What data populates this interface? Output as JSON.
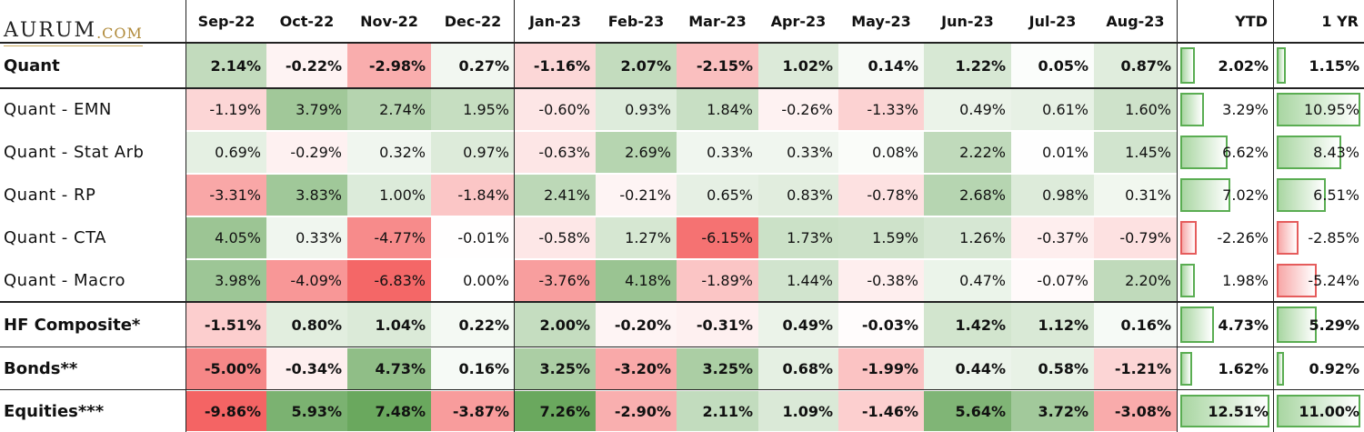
{
  "logo": {
    "text": "AURUM",
    "suffix": ".COM"
  },
  "colors": {
    "positive": "#6aa85e",
    "negative": "#f46464",
    "neutral": "#ffffff",
    "bar_pos_fill": "#a9d6a2",
    "bar_pos_edge": "#5aad52",
    "bar_neg_fill": "#f7a8a8",
    "bar_neg_edge": "#e55c5c"
  },
  "chart_data": {
    "type": "heatmap",
    "columns": [
      "Sep-22",
      "Oct-22",
      "Nov-22",
      "Dec-22",
      "Jan-23",
      "Feb-23",
      "Mar-23",
      "Apr-23",
      "May-23",
      "Jun-23",
      "Jul-23",
      "Aug-23"
    ],
    "summary_columns": [
      "YTD",
      "1 YR"
    ],
    "rows": [
      {
        "label": "Quant",
        "bold": true,
        "values": [
          2.14,
          -0.22,
          -2.98,
          0.27,
          -1.16,
          2.07,
          -2.15,
          1.02,
          0.14,
          1.22,
          0.05,
          0.87
        ],
        "labels": [
          "2.14%",
          "-0.22%",
          "-2.98%",
          "0.27%",
          "-1.16%",
          "2.07%",
          "-2.15%",
          "1.02%",
          "0.14%",
          "1.22%",
          "0.05%",
          "0.87%"
        ],
        "ytd": 2.02,
        "ytd_label": "2.02%",
        "one_yr": 1.15,
        "one_yr_label": "1.15%"
      },
      {
        "label": "Quant - EMN",
        "bold": false,
        "values": [
          -1.19,
          3.79,
          2.74,
          1.95,
          -0.6,
          0.93,
          1.84,
          -0.26,
          -1.33,
          0.49,
          0.61,
          1.6
        ],
        "labels": [
          "-1.19%",
          "3.79%",
          "2.74%",
          "1.95%",
          "-0.60%",
          "0.93%",
          "1.84%",
          "-0.26%",
          "-1.33%",
          "0.49%",
          "0.61%",
          "1.60%"
        ],
        "ytd": 3.29,
        "ytd_label": "3.29%",
        "one_yr": 10.95,
        "one_yr_label": "10.95%"
      },
      {
        "label": "Quant - Stat Arb",
        "bold": false,
        "values": [
          0.69,
          -0.29,
          0.32,
          0.97,
          -0.63,
          2.69,
          0.33,
          0.33,
          0.08,
          2.22,
          0.01,
          1.45
        ],
        "labels": [
          "0.69%",
          "-0.29%",
          "0.32%",
          "0.97%",
          "-0.63%",
          "2.69%",
          "0.33%",
          "0.33%",
          "0.08%",
          "2.22%",
          "0.01%",
          "1.45%"
        ],
        "ytd": 6.62,
        "ytd_label": "6.62%",
        "one_yr": 8.43,
        "one_yr_label": "8.43%"
      },
      {
        "label": "Quant - RP",
        "bold": false,
        "values": [
          -3.31,
          3.83,
          1.0,
          -1.84,
          2.41,
          -0.21,
          0.65,
          0.83,
          -0.78,
          2.68,
          0.98,
          0.31
        ],
        "labels": [
          "-3.31%",
          "3.83%",
          "1.00%",
          "-1.84%",
          "2.41%",
          "-0.21%",
          "0.65%",
          "0.83%",
          "-0.78%",
          "2.68%",
          "0.98%",
          "0.31%"
        ],
        "ytd": 7.02,
        "ytd_label": "7.02%",
        "one_yr": 6.51,
        "one_yr_label": "6.51%"
      },
      {
        "label": "Quant - CTA",
        "bold": false,
        "values": [
          4.05,
          0.33,
          -4.77,
          -0.01,
          -0.58,
          1.27,
          -6.15,
          1.73,
          1.59,
          1.26,
          -0.37,
          -0.79
        ],
        "labels": [
          "4.05%",
          "0.33%",
          "-4.77%",
          "-0.01%",
          "-0.58%",
          "1.27%",
          "-6.15%",
          "1.73%",
          "1.59%",
          "1.26%",
          "-0.37%",
          "-0.79%"
        ],
        "ytd": -2.26,
        "ytd_label": "-2.26%",
        "one_yr": -2.85,
        "one_yr_label": "-2.85%"
      },
      {
        "label": "Quant - Macro",
        "bold": false,
        "values": [
          3.98,
          -4.09,
          -6.83,
          0.0,
          -3.76,
          4.18,
          -1.89,
          1.44,
          -0.38,
          0.47,
          -0.07,
          2.2
        ],
        "labels": [
          "3.98%",
          "-4.09%",
          "-6.83%",
          "0.00%",
          "-3.76%",
          "4.18%",
          "-1.89%",
          "1.44%",
          "-0.38%",
          "0.47%",
          "-0.07%",
          "2.20%"
        ],
        "ytd": 1.98,
        "ytd_label": "1.98%",
        "one_yr": -5.24,
        "one_yr_label": "-5.24%"
      },
      {
        "label": "HF Composite*",
        "bold": true,
        "values": [
          -1.51,
          0.8,
          1.04,
          0.22,
          2.0,
          -0.2,
          -0.31,
          0.49,
          -0.03,
          1.42,
          1.12,
          0.16
        ],
        "labels": [
          "-1.51%",
          "0.80%",
          "1.04%",
          "0.22%",
          "2.00%",
          "-0.20%",
          "-0.31%",
          "0.49%",
          "-0.03%",
          "1.42%",
          "1.12%",
          "0.16%"
        ],
        "ytd": 4.73,
        "ytd_label": "4.73%",
        "one_yr": 5.29,
        "one_yr_label": "5.29%"
      },
      {
        "label": "Bonds**",
        "bold": true,
        "values": [
          -5.0,
          -0.34,
          4.73,
          0.16,
          3.25,
          -3.2,
          3.25,
          0.68,
          -1.99,
          0.44,
          0.58,
          -1.21
        ],
        "labels": [
          "-5.00%",
          "-0.34%",
          "4.73%",
          "0.16%",
          "3.25%",
          "-3.20%",
          "3.25%",
          "0.68%",
          "-1.99%",
          "0.44%",
          "0.58%",
          "-1.21%"
        ],
        "ytd": 1.62,
        "ytd_label": "1.62%",
        "one_yr": 0.92,
        "one_yr_label": "0.92%"
      },
      {
        "label": "Equities***",
        "bold": true,
        "values": [
          -9.86,
          5.93,
          7.48,
          -3.87,
          7.26,
          -2.9,
          2.11,
          1.09,
          -1.46,
          5.64,
          3.72,
          -3.08
        ],
        "labels": [
          "-9.86%",
          "5.93%",
          "7.48%",
          "-3.87%",
          "7.26%",
          "-2.90%",
          "2.11%",
          "1.09%",
          "-1.46%",
          "5.64%",
          "3.72%",
          "-3.08%"
        ],
        "ytd": 12.51,
        "ytd_label": "12.51%",
        "one_yr": 11.0,
        "one_yr_label": "11.00%"
      }
    ]
  }
}
